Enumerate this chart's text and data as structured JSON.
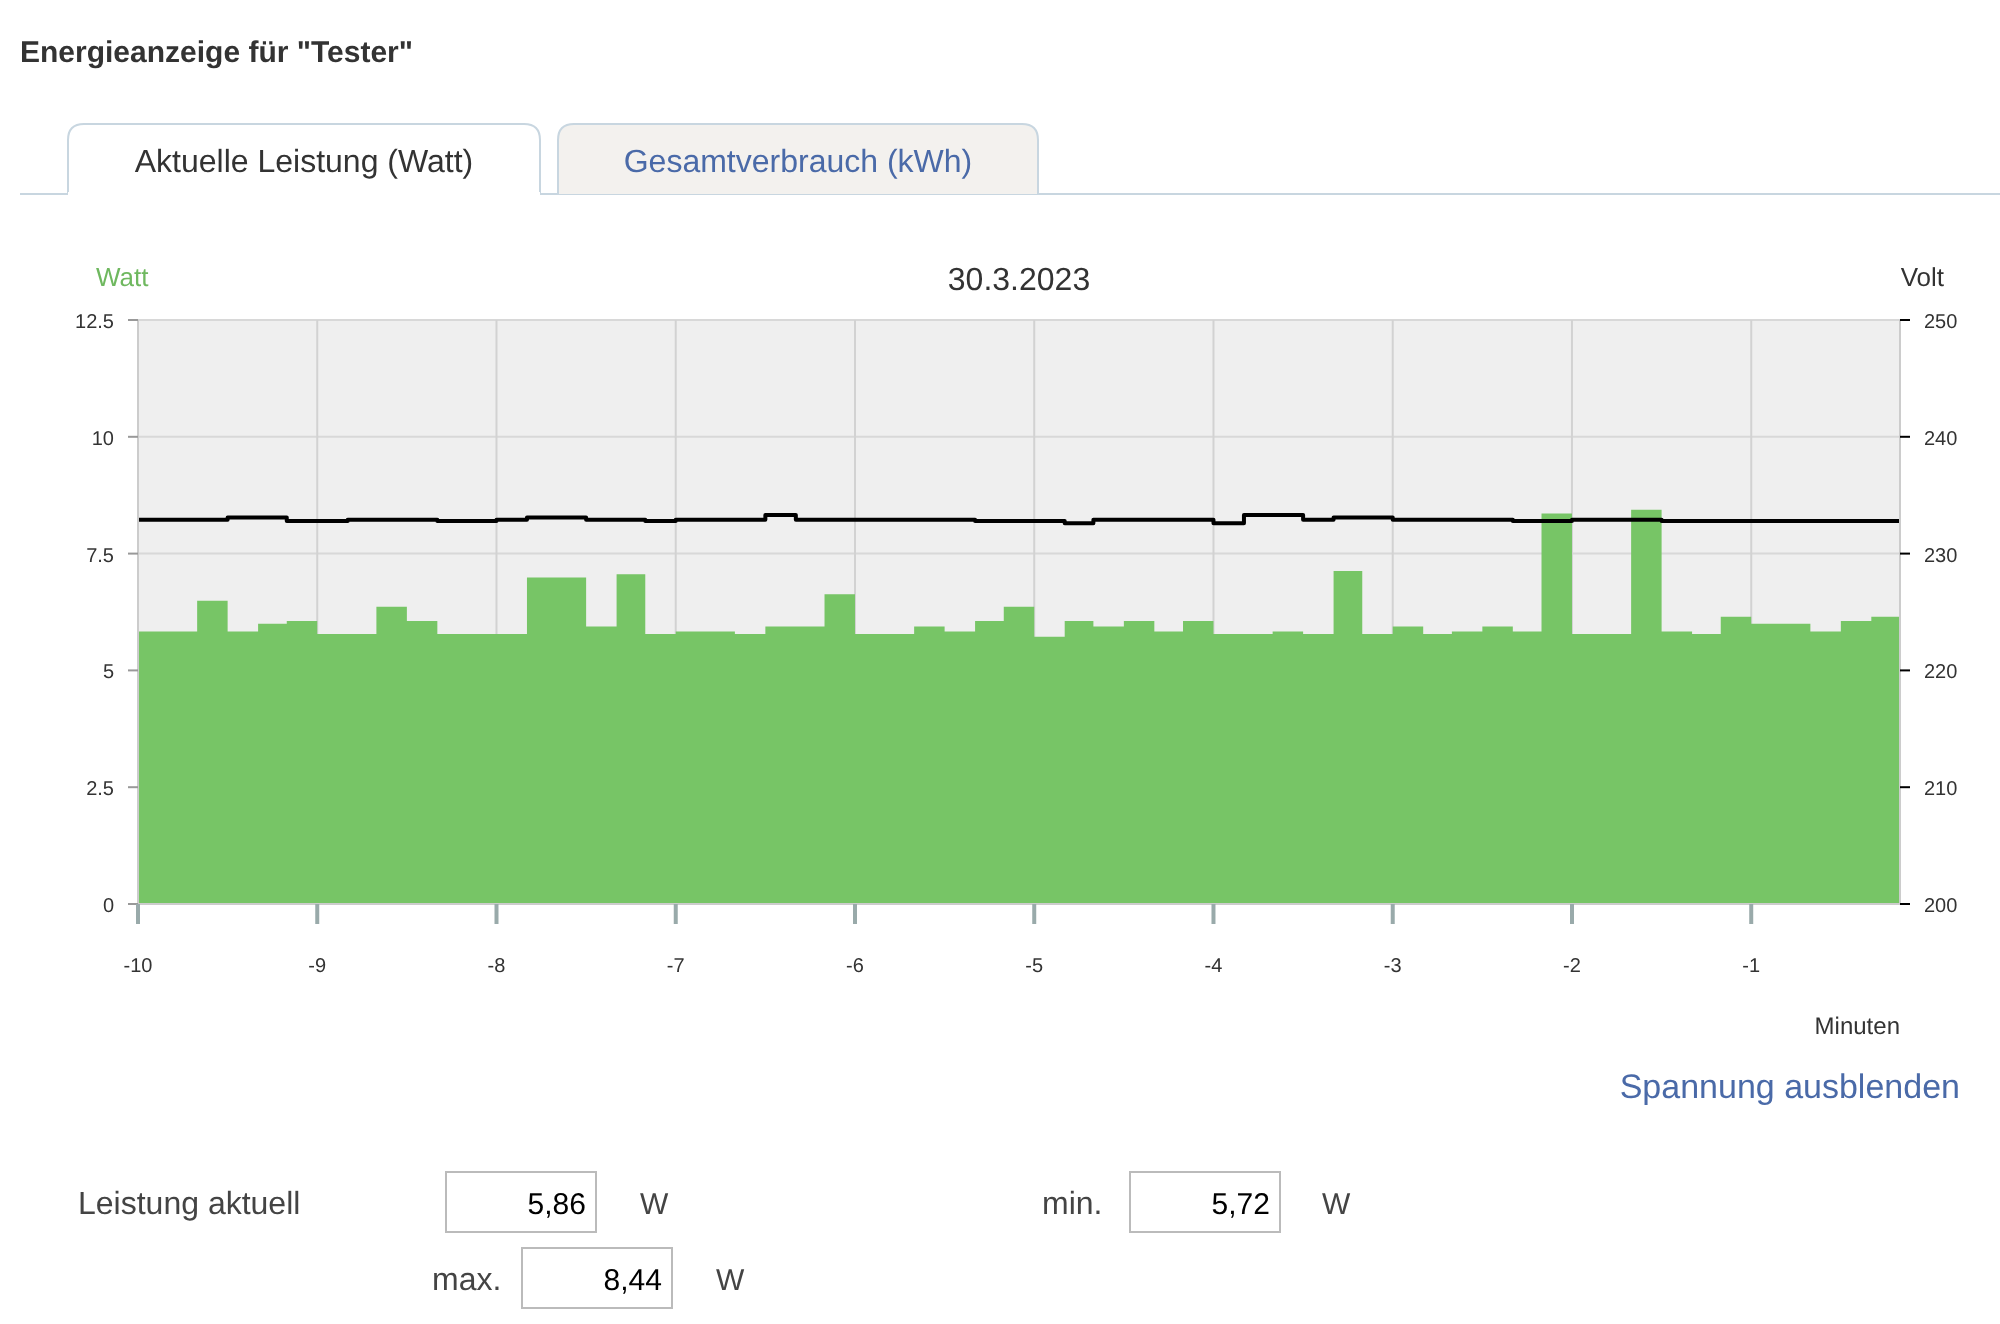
{
  "chart_data": {
    "type": "area",
    "title": "30.3.2023",
    "xlabel": "Minuten",
    "ylabel": "Watt",
    "y2label": "Volt",
    "annotations": [
      "Energieanzeige für \"Tester\"",
      "Aktuelle Leistung (Watt)",
      "Gesamtverbrauch (kWh)",
      "Spannung ausblenden",
      "Leistung aktuell",
      "5,86",
      "W",
      "min.",
      "5,72",
      "W",
      "max.",
      "8,44",
      "W"
    ],
    "x": [
      -10,
      -9.83,
      -9.67,
      -9.5,
      -9.33,
      -9.17,
      -9,
      -8.83,
      -8.67,
      -8.5,
      -8.33,
      -8.17,
      -8,
      -7.83,
      -7.67,
      -7.5,
      -7.33,
      -7.17,
      -7,
      -6.83,
      -6.67,
      -6.5,
      -6.33,
      -6.17,
      -6,
      -5.83,
      -5.67,
      -5.5,
      -5.33,
      -5.17,
      -5,
      -4.83,
      -4.67,
      -4.5,
      -4.33,
      -4.17,
      -4,
      -3.83,
      -3.67,
      -3.5,
      -3.33,
      -3.17,
      -3,
      -2.83,
      -2.67,
      -2.5,
      -2.33,
      -2.17,
      -2,
      -1.83,
      -1.67,
      -1.5,
      -1.33,
      -1.17,
      -1,
      -0.83,
      -0.67,
      -0.5,
      -0.33,
      -0.17
    ],
    "series": [
      {
        "color": "#77c566",
        "values": [
          5.83,
          5.83,
          6.49,
          5.83,
          6.0,
          6.06,
          5.78,
          5.78,
          6.36,
          6.06,
          5.78,
          5.78,
          5.78,
          6.99,
          6.99,
          5.94,
          7.06,
          5.78,
          5.83,
          5.83,
          5.78,
          5.94,
          5.94,
          6.63,
          5.78,
          5.78,
          5.94,
          5.83,
          6.06,
          6.36,
          5.72,
          6.06,
          5.94,
          6.06,
          5.83,
          6.06,
          5.78,
          5.78,
          5.83,
          5.78,
          7.13,
          5.78,
          5.94,
          5.78,
          5.83,
          5.94,
          5.83,
          8.36,
          5.78,
          5.78,
          8.44,
          5.83,
          5.78,
          6.15,
          6.0,
          6.0,
          5.83,
          6.06,
          6.15,
          6.15
        ]
      },
      {
        "type": "step",
        "axis": "y2",
        "color": "#000000",
        "values": [
          232.9,
          232.9,
          232.9,
          233.1,
          233.1,
          232.8,
          232.8,
          232.9,
          232.9,
          232.9,
          232.8,
          232.8,
          232.9,
          233.1,
          233.1,
          232.9,
          232.9,
          232.8,
          232.9,
          232.9,
          232.9,
          233.3,
          232.9,
          232.9,
          232.9,
          232.9,
          232.9,
          232.9,
          232.8,
          232.8,
          232.8,
          232.6,
          232.9,
          232.9,
          232.9,
          232.9,
          232.6,
          233.3,
          233.3,
          232.9,
          233.1,
          233.1,
          232.9,
          232.9,
          232.9,
          232.9,
          232.8,
          232.8,
          232.9,
          232.9,
          232.9,
          232.8,
          232.8,
          232.8,
          232.8,
          232.8,
          232.8,
          232.8,
          232.8,
          232.8
        ]
      }
    ],
    "xlim": [
      -10,
      -0.17
    ],
    "xticks": [
      -10,
      -9,
      -8,
      -7,
      -6,
      -5,
      -4,
      -3,
      -2,
      -1
    ],
    "ylim": [
      0,
      12.5
    ],
    "yticks": [
      0,
      2.5,
      5,
      7.5,
      10,
      12.5
    ],
    "y2lim": [
      200,
      250
    ],
    "y2ticks": [
      200,
      210,
      220,
      230,
      240,
      250
    ],
    "grid": true
  }
}
